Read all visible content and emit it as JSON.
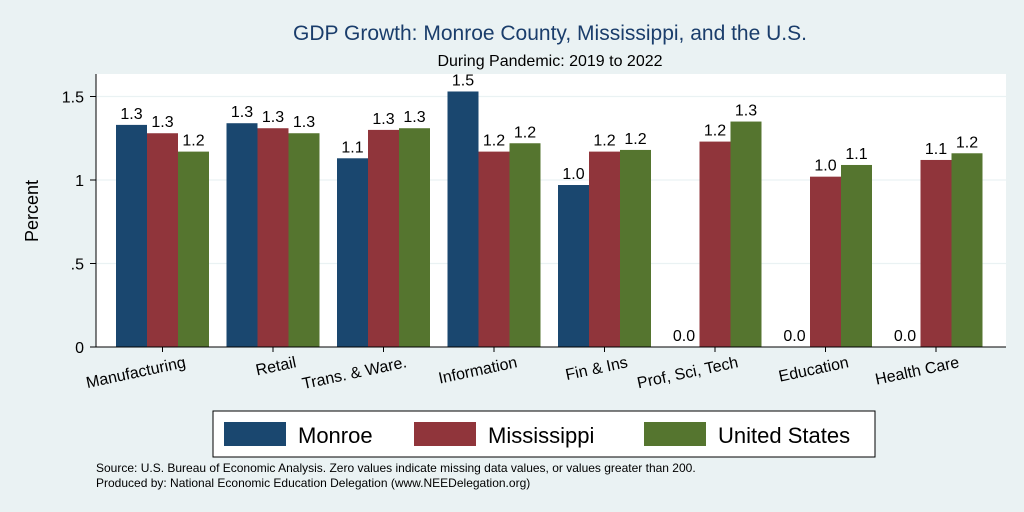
{
  "chart_data": {
    "type": "bar",
    "title": "GDP Growth: Monroe County, Mississippi, and the U.S.",
    "subtitle": "During Pandemic: 2019 to 2022",
    "ylabel": "Percent",
    "xlabel": "",
    "ylim": [
      0,
      1.6
    ],
    "yticks": [
      {
        "value": 0,
        "label": "0"
      },
      {
        "value": 0.5,
        "label": ".5"
      },
      {
        "value": 1,
        "label": "1"
      },
      {
        "value": 1.5,
        "label": "1.5"
      }
    ],
    "grid": true,
    "legend_position": "bottom",
    "categories": [
      "Manufacturing",
      "Retail",
      "Trans. & Ware.",
      "Information",
      "Fin & Ins",
      "Prof, Sci, Tech",
      "Education",
      "Health Care"
    ],
    "series": [
      {
        "name": "Monroe",
        "color": "#1a476f",
        "values": [
          1.33,
          1.34,
          1.13,
          1.53,
          0.97,
          0,
          0,
          0
        ],
        "labels": [
          "1.3",
          "1.3",
          "1.1",
          "1.5",
          "1.0",
          "0.0",
          "0.0",
          "0.0"
        ]
      },
      {
        "name": "Mississippi",
        "color": "#90353b",
        "values": [
          1.28,
          1.31,
          1.3,
          1.17,
          1.17,
          1.23,
          1.02,
          1.12
        ],
        "labels": [
          "1.3",
          "1.3",
          "1.3",
          "1.2",
          "1.2",
          "1.2",
          "1.0",
          "1.1"
        ]
      },
      {
        "name": "United States",
        "color": "#55752f",
        "values": [
          1.17,
          1.28,
          1.31,
          1.22,
          1.18,
          1.35,
          1.09,
          1.16
        ],
        "labels": [
          "1.2",
          "1.3",
          "1.3",
          "1.2",
          "1.2",
          "1.3",
          "1.1",
          "1.2"
        ]
      }
    ],
    "source_lines": [
      "Source: U.S. Bureau of Economic Analysis. Zero values indicate missing data values, or values greater than 200.",
      "Produced by: National Economic Education Delegation (www.NEEDelegation.org)"
    ]
  }
}
